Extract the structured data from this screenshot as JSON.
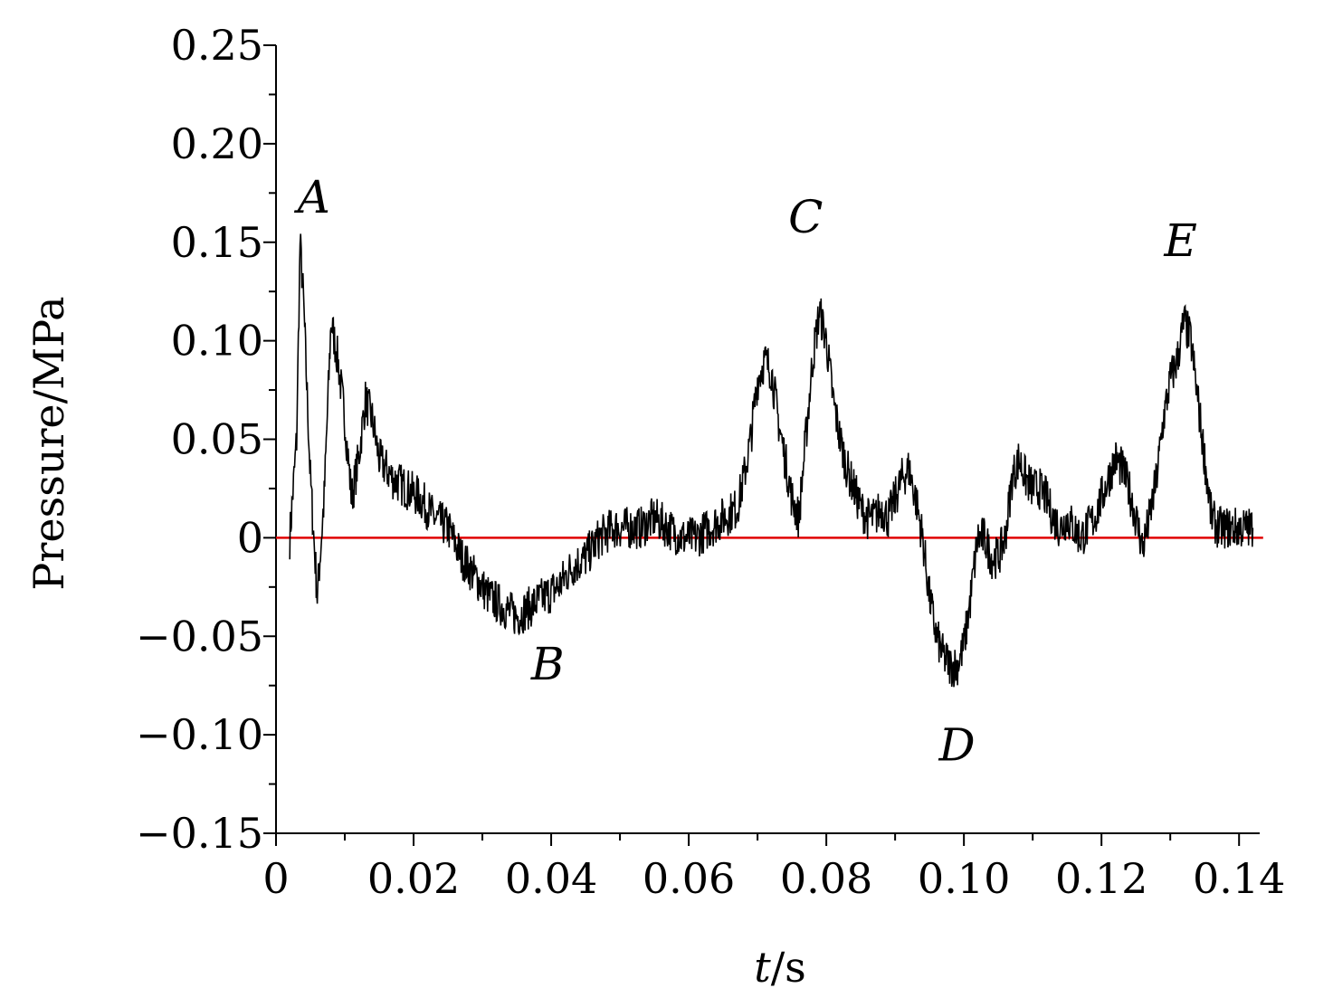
{
  "chart_data": {
    "type": "line",
    "xlabel_var": "t",
    "xlabel_unit": "/s",
    "ylabel": "Pressure/MPa",
    "xlim": [
      0,
      0.143
    ],
    "ylim": [
      -0.15,
      0.25
    ],
    "x_ticks": [
      "0",
      "0.02",
      "0.04",
      "0.06",
      "0.08",
      "0.10",
      "0.12",
      "0.14"
    ],
    "x_tick_values": [
      0,
      0.02,
      0.04,
      0.06,
      0.08,
      0.1,
      0.12,
      0.14
    ],
    "y_ticks": [
      "0.25",
      "0.20",
      "0.15",
      "0.10",
      "0.05",
      "0",
      "−0.05",
      "−0.10",
      "−0.15"
    ],
    "y_tick_values": [
      0.25,
      0.2,
      0.15,
      0.1,
      0.05,
      0,
      -0.05,
      -0.1,
      -0.15
    ],
    "grid": false,
    "reference_line": {
      "y": 0,
      "color": "#e00000"
    },
    "series": [
      {
        "color": "#000000",
        "x": [
          0.002,
          0.003,
          0.0035,
          0.004,
          0.005,
          0.006,
          0.007,
          0.008,
          0.009,
          0.01,
          0.011,
          0.012,
          0.013,
          0.014,
          0.015,
          0.017,
          0.019,
          0.021,
          0.023,
          0.025,
          0.027,
          0.029,
          0.031,
          0.033,
          0.035,
          0.037,
          0.039,
          0.041,
          0.043,
          0.045,
          0.047,
          0.049,
          0.051,
          0.053,
          0.055,
          0.057,
          0.059,
          0.061,
          0.063,
          0.065,
          0.067,
          0.068,
          0.069,
          0.07,
          0.071,
          0.072,
          0.073,
          0.074,
          0.075,
          0.076,
          0.077,
          0.078,
          0.079,
          0.08,
          0.081,
          0.082,
          0.083,
          0.084,
          0.085,
          0.086,
          0.087,
          0.088,
          0.089,
          0.09,
          0.091,
          0.092,
          0.093,
          0.094,
          0.095,
          0.096,
          0.097,
          0.098,
          0.099,
          0.1,
          0.101,
          0.102,
          0.103,
          0.104,
          0.105,
          0.106,
          0.107,
          0.108,
          0.109,
          0.11,
          0.111,
          0.112,
          0.113,
          0.114,
          0.115,
          0.116,
          0.117,
          0.118,
          0.119,
          0.12,
          0.121,
          0.122,
          0.123,
          0.124,
          0.125,
          0.126,
          0.127,
          0.128,
          0.129,
          0.13,
          0.131,
          0.132,
          0.133,
          0.134,
          0.135,
          0.136,
          0.137,
          0.138,
          0.139,
          0.14,
          0.141,
          0.142
        ],
        "y": [
          0.0,
          0.05,
          0.15,
          0.12,
          0.03,
          -0.03,
          0.02,
          0.11,
          0.09,
          0.06,
          0.02,
          0.04,
          0.07,
          0.06,
          0.04,
          0.03,
          0.025,
          0.02,
          0.01,
          0.005,
          -0.01,
          -0.02,
          -0.03,
          -0.035,
          -0.04,
          -0.035,
          -0.03,
          -0.025,
          -0.015,
          -0.01,
          0.0,
          0.005,
          0.005,
          0.005,
          0.01,
          0.005,
          0.0,
          0.0,
          0.005,
          0.01,
          0.015,
          0.03,
          0.05,
          0.08,
          0.09,
          0.085,
          0.06,
          0.04,
          0.02,
          0.01,
          0.05,
          0.09,
          0.115,
          0.1,
          0.07,
          0.05,
          0.035,
          0.025,
          0.015,
          0.01,
          0.01,
          0.015,
          0.01,
          0.02,
          0.03,
          0.035,
          0.02,
          0.0,
          -0.03,
          -0.05,
          -0.06,
          -0.065,
          -0.065,
          -0.055,
          -0.03,
          0.0,
          0.0,
          -0.01,
          -0.01,
          0.0,
          0.03,
          0.04,
          0.03,
          0.025,
          0.025,
          0.02,
          0.01,
          0.005,
          0.01,
          0.005,
          0.0,
          0.005,
          0.01,
          0.02,
          0.03,
          0.04,
          0.035,
          0.025,
          0.01,
          -0.005,
          0.01,
          0.03,
          0.06,
          0.08,
          0.09,
          0.11,
          0.1,
          0.07,
          0.04,
          0.01,
          0.005,
          0.005,
          0.005,
          0.005,
          0.005,
          0.005
        ]
      }
    ],
    "annotations": [
      {
        "text": "A",
        "x": 0.0055,
        "y": 0.165
      },
      {
        "text": "B",
        "x": 0.0395,
        "y": -0.072
      },
      {
        "text": "C",
        "x": 0.077,
        "y": 0.155
      },
      {
        "text": "D",
        "x": 0.099,
        "y": -0.113
      },
      {
        "text": "E",
        "x": 0.1315,
        "y": 0.143
      }
    ]
  }
}
